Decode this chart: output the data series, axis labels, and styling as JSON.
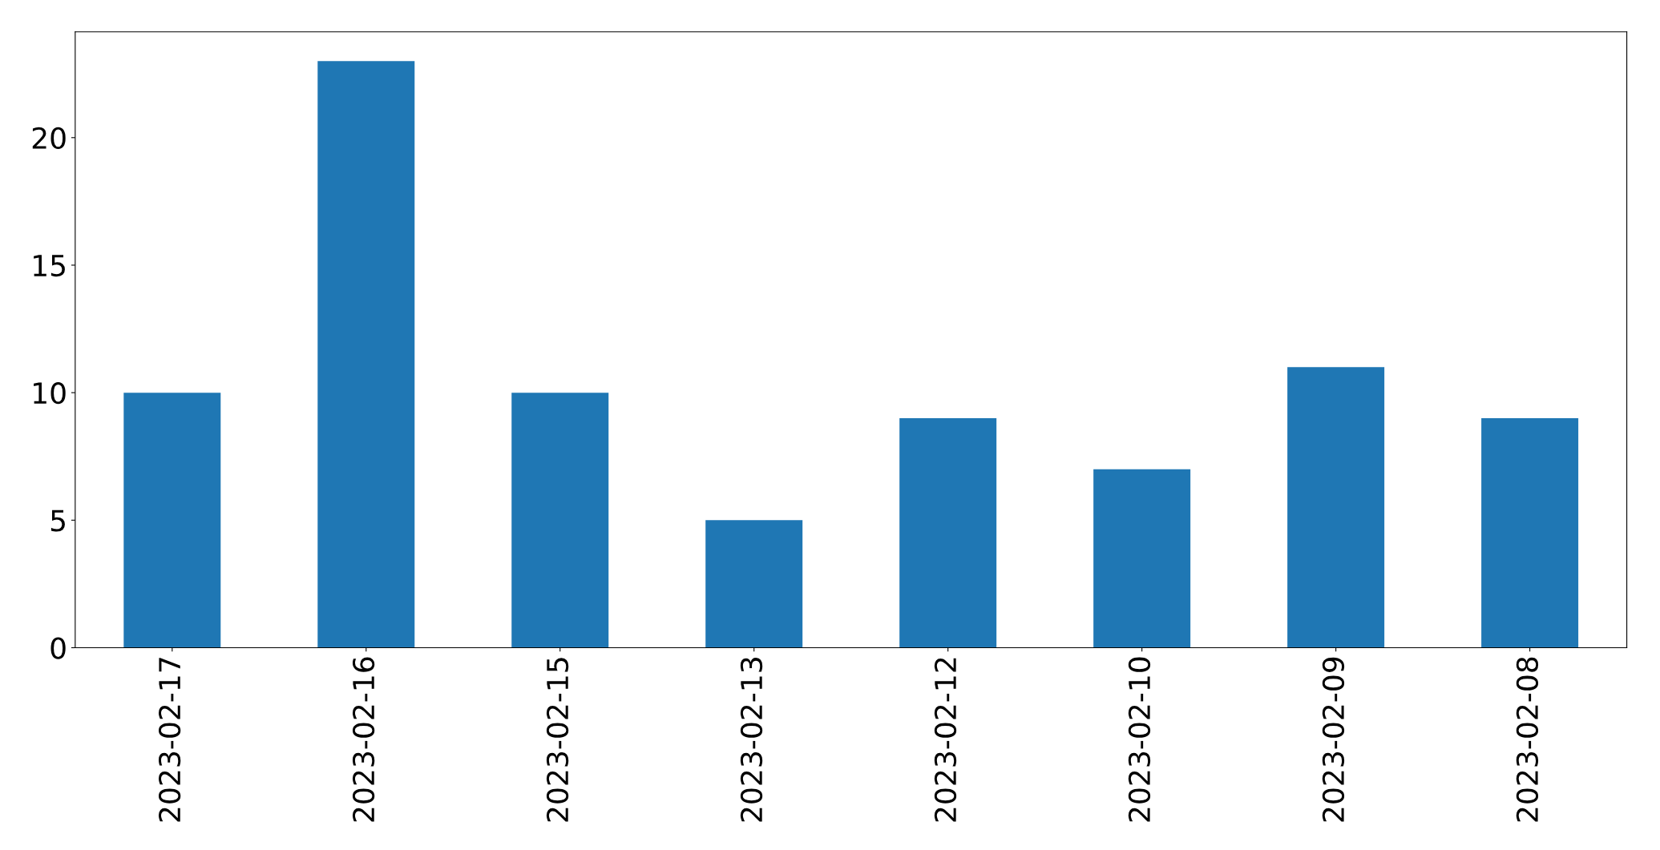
{
  "chart_data": {
    "type": "bar",
    "categories": [
      "2023-02-17",
      "2023-02-16",
      "2023-02-15",
      "2023-02-13",
      "2023-02-12",
      "2023-02-10",
      "2023-02-09",
      "2023-02-08"
    ],
    "values": [
      10,
      23,
      10,
      5,
      9,
      7,
      11,
      9
    ],
    "color": "#1f77b4",
    "ylim": [
      0,
      24.15
    ],
    "yticks": [
      0,
      5,
      10,
      15,
      20
    ],
    "grid": false,
    "legend": false
  }
}
